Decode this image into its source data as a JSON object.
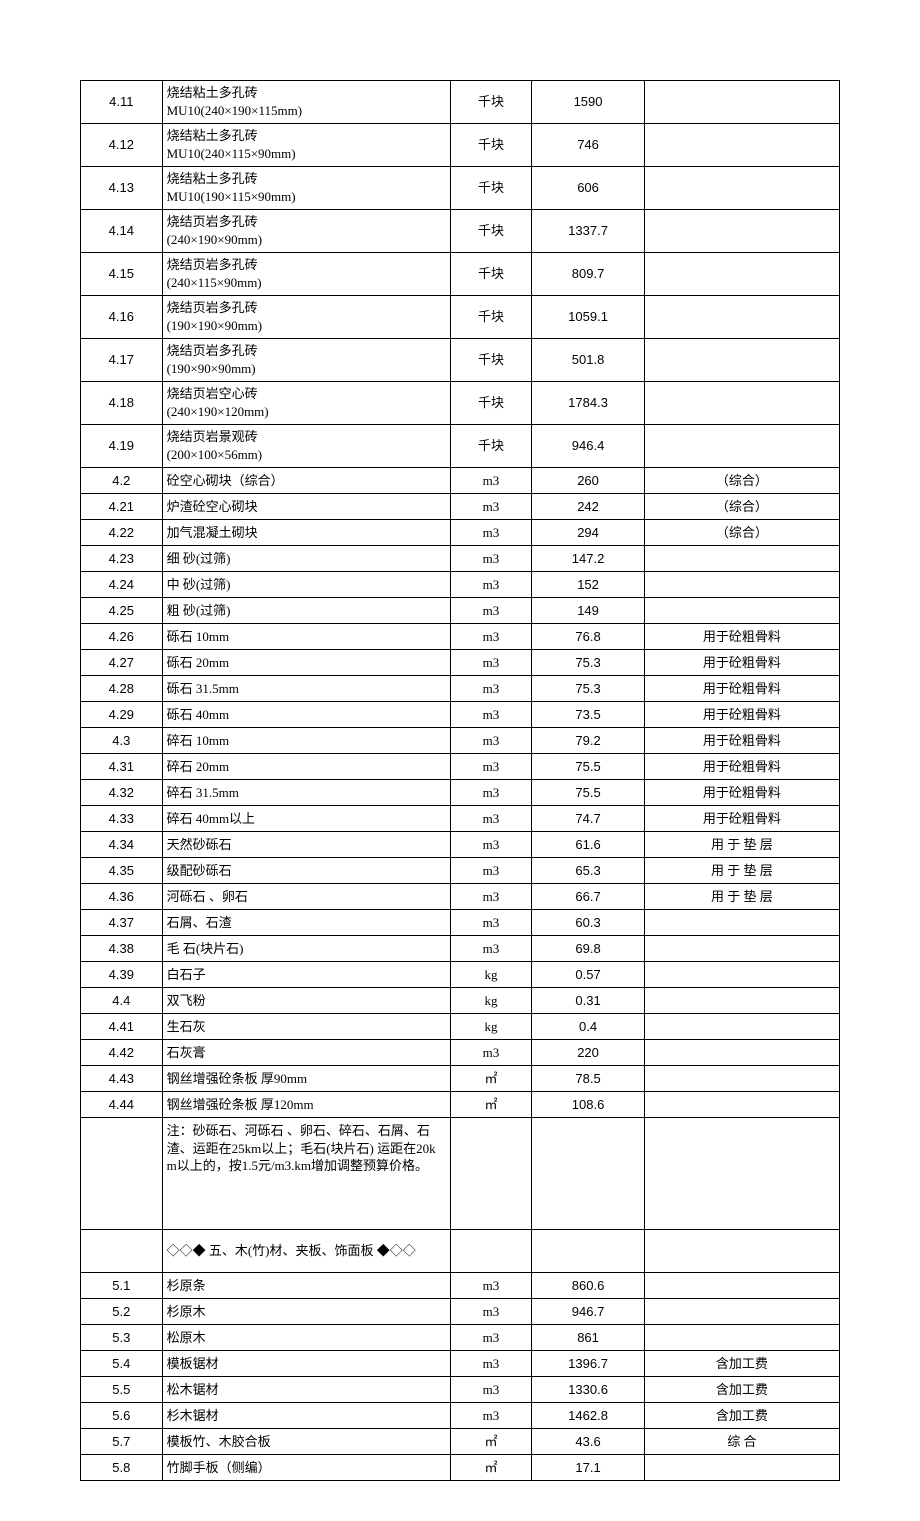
{
  "rows": [
    {
      "idx": "4.11",
      "name": "烧结粘土多孔砖\nMU10(240×190×115mm)",
      "unit": "千块",
      "price": "1590",
      "note": "",
      "tall": true
    },
    {
      "idx": "4.12",
      "name": "烧结粘土多孔砖\nMU10(240×115×90mm)",
      "unit": "千块",
      "price": "746",
      "note": "",
      "tall": true
    },
    {
      "idx": "4.13",
      "name": "烧结粘土多孔砖\nMU10(190×115×90mm)",
      "unit": "千块",
      "price": "606",
      "note": "",
      "tall": true
    },
    {
      "idx": "4.14",
      "name": "烧结页岩多孔砖\n(240×190×90mm)",
      "unit": "千块",
      "price": "1337.7",
      "note": "",
      "tall": true
    },
    {
      "idx": "4.15",
      "name": "烧结页岩多孔砖\n(240×115×90mm)",
      "unit": "千块",
      "price": "809.7",
      "note": "",
      "tall": true
    },
    {
      "idx": "4.16",
      "name": "烧结页岩多孔砖\n(190×190×90mm)",
      "unit": "千块",
      "price": "1059.1",
      "note": "",
      "tall": true
    },
    {
      "idx": "4.17",
      "name": "烧结页岩多孔砖\n(190×90×90mm)",
      "unit": "千块",
      "price": "501.8",
      "note": "",
      "tall": true
    },
    {
      "idx": "4.18",
      "name": "烧结页岩空心砖\n(240×190×120mm)",
      "unit": "千块",
      "price": "1784.3",
      "note": "",
      "tall": true
    },
    {
      "idx": "4.19",
      "name": "烧结页岩景观砖\n(200×100×56mm)",
      "unit": "千块",
      "price": "946.4",
      "note": "",
      "tall": true
    },
    {
      "idx": "4.2",
      "name": "砼空心砌块（综合）",
      "unit": "m3",
      "price": "260",
      "note": "（综合）"
    },
    {
      "idx": "4.21",
      "name": "炉渣砼空心砌块",
      "unit": "m3",
      "price": "242",
      "note": "（综合）"
    },
    {
      "idx": "4.22",
      "name": "加气混凝土砌块",
      "unit": "m3",
      "price": "294",
      "note": "（综合）"
    },
    {
      "idx": "4.23",
      "name": "细 砂(过筛)",
      "unit": "m3",
      "price": "147.2",
      "note": ""
    },
    {
      "idx": "4.24",
      "name": "中 砂(过筛)",
      "unit": "m3",
      "price": "152",
      "note": ""
    },
    {
      "idx": "4.25",
      "name": "粗 砂(过筛)",
      "unit": "m3",
      "price": "149",
      "note": ""
    },
    {
      "idx": "4.26",
      "name": "砾石 10mm",
      "unit": "m3",
      "price": "76.8",
      "note": "用于砼粗骨料"
    },
    {
      "idx": "4.27",
      "name": "砾石 20mm",
      "unit": "m3",
      "price": "75.3",
      "note": "用于砼粗骨料"
    },
    {
      "idx": "4.28",
      "name": "砾石 31.5mm",
      "unit": "m3",
      "price": "75.3",
      "note": "用于砼粗骨料"
    },
    {
      "idx": "4.29",
      "name": "砾石 40mm",
      "unit": "m3",
      "price": "73.5",
      "note": "用于砼粗骨料"
    },
    {
      "idx": "4.3",
      "name": "碎石 10mm",
      "unit": "m3",
      "price": "79.2",
      "note": "用于砼粗骨料"
    },
    {
      "idx": "4.31",
      "name": "碎石 20mm",
      "unit": "m3",
      "price": "75.5",
      "note": "用于砼粗骨料"
    },
    {
      "idx": "4.32",
      "name": "碎石 31.5mm",
      "unit": "m3",
      "price": "75.5",
      "note": "用于砼粗骨料"
    },
    {
      "idx": "4.33",
      "name": "碎石 40mm以上",
      "unit": "m3",
      "price": "74.7",
      "note": "用于砼粗骨料"
    },
    {
      "idx": "4.34",
      "name": "天然砂砾石",
      "unit": "m3",
      "price": "61.6",
      "note": "用 于 垫 层"
    },
    {
      "idx": "4.35",
      "name": "级配砂砾石",
      "unit": "m3",
      "price": "65.3",
      "note": "用 于 垫 层"
    },
    {
      "idx": "4.36",
      "name": "河砾石 、卵石",
      "unit": "m3",
      "price": "66.7",
      "note": "用 于 垫 层"
    },
    {
      "idx": "4.37",
      "name": "石屑、石渣",
      "unit": "m3",
      "price": "60.3",
      "note": ""
    },
    {
      "idx": "4.38",
      "name": "毛 石(块片石)",
      "unit": "m3",
      "price": "69.8",
      "note": ""
    },
    {
      "idx": "4.39",
      "name": "白石子",
      "unit": "kg",
      "price": "0.57",
      "note": ""
    },
    {
      "idx": "4.4",
      "name": "双飞粉",
      "unit": "kg",
      "price": "0.31",
      "note": ""
    },
    {
      "idx": "4.41",
      "name": "生石灰",
      "unit": "kg",
      "price": "0.4",
      "note": ""
    },
    {
      "idx": "4.42",
      "name": "石灰膏",
      "unit": "m3",
      "price": "220",
      "note": ""
    },
    {
      "idx": "4.43",
      "name": "钢丝增强砼条板 厚90mm",
      "unit": "㎡",
      "price": "78.5",
      "note": ""
    },
    {
      "idx": "4.44",
      "name": "钢丝增强砼条板 厚120mm",
      "unit": "㎡",
      "price": "108.6",
      "note": ""
    },
    {
      "idx": "",
      "name": "注：砂砾石、河砾石 、卵石、碎石、石屑、石渣、运距在25km以上；毛石(块片石) 运距在20km以上的，按1.5元/m3.km增加调整预算价格。",
      "unit": "",
      "price": "",
      "note": "",
      "noteRow": true
    },
    {
      "idx": "",
      "name": "◇◇◆ 五、木(竹)材、夹板、饰面板 ◆◇◇",
      "unit": "",
      "price": "",
      "note": "",
      "sectionRow": true
    },
    {
      "idx": "5.1",
      "name": "杉原条",
      "unit": "m3",
      "price": "860.6",
      "note": ""
    },
    {
      "idx": "5.2",
      "name": "杉原木",
      "unit": "m3",
      "price": "946.7",
      "note": ""
    },
    {
      "idx": "5.3",
      "name": "松原木",
      "unit": "m3",
      "price": "861",
      "note": ""
    },
    {
      "idx": "5.4",
      "name": "模板锯材",
      "unit": "m3",
      "price": "1396.7",
      "note": "含加工费"
    },
    {
      "idx": "5.5",
      "name": "松木锯材",
      "unit": "m3",
      "price": "1330.6",
      "note": "含加工费"
    },
    {
      "idx": "5.6",
      "name": "杉木锯材",
      "unit": "m3",
      "price": "1462.8",
      "note": "含加工费"
    },
    {
      "idx": "5.7",
      "name": "模板竹、木胶合板",
      "unit": "㎡",
      "price": "43.6",
      "note": "综 合"
    },
    {
      "idx": "5.8",
      "name": "竹脚手板（侧编）",
      "unit": "㎡",
      "price": "17.1",
      "note": ""
    }
  ]
}
